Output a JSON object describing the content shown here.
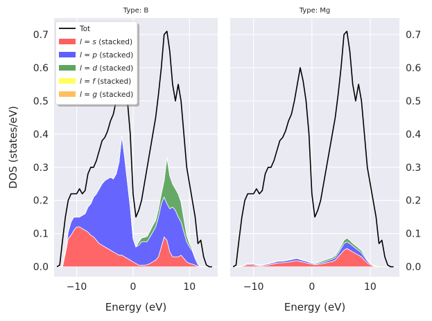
{
  "chart_data": [
    {
      "type": "area",
      "title": "Type: B",
      "xlabel": "Energy (eV)",
      "ylabel": "DOS (states/eV)",
      "xlim": [
        -14,
        15
      ],
      "ylim": [
        -0.03,
        0.75
      ],
      "xticks": [
        -10,
        0,
        10
      ],
      "yticks": [
        0.0,
        0.1,
        0.2,
        0.3,
        0.4,
        0.5,
        0.6,
        0.7
      ],
      "xtick_labels": [
        "−10",
        "0",
        "10"
      ],
      "ytick_labels": [
        "0.0",
        "0.1",
        "0.2",
        "0.3",
        "0.4",
        "0.5",
        "0.6",
        "0.7"
      ],
      "y_axis_side": "left",
      "grid": true,
      "legend_position": "upper-left",
      "x": [
        -13.5,
        -13,
        -12.5,
        -12,
        -11.5,
        -11,
        -10.5,
        -10,
        -9.5,
        -9,
        -8.5,
        -8,
        -7.5,
        -7,
        -6.5,
        -6,
        -5.5,
        -5,
        -4.5,
        -4,
        -3.5,
        -3,
        -2.5,
        -2,
        -1.5,
        -1,
        -0.5,
        0,
        0.5,
        1,
        1.5,
        2,
        2.5,
        3,
        3.5,
        4,
        4.5,
        5,
        5.5,
        6,
        6.5,
        7,
        7.5,
        8,
        8.5,
        9,
        9.5,
        10,
        10.5,
        11,
        11.5,
        12,
        12.5,
        13,
        13.5,
        14
      ],
      "series": [
        {
          "name": "Tot",
          "kind": "line",
          "color": "#000000",
          "values": [
            0,
            0.005,
            0.08,
            0.15,
            0.2,
            0.22,
            0.22,
            0.22,
            0.235,
            0.22,
            0.23,
            0.28,
            0.3,
            0.3,
            0.32,
            0.35,
            0.38,
            0.39,
            0.41,
            0.44,
            0.46,
            0.5,
            0.55,
            0.6,
            0.56,
            0.5,
            0.4,
            0.22,
            0.15,
            0.17,
            0.2,
            0.25,
            0.3,
            0.35,
            0.4,
            0.45,
            0.52,
            0.6,
            0.7,
            0.71,
            0.65,
            0.55,
            0.5,
            0.55,
            0.5,
            0.4,
            0.3,
            0.25,
            0.2,
            0.15,
            0.07,
            0.08,
            0.03,
            0.005,
            0,
            0
          ]
        },
        {
          "name": "l = s (stacked)",
          "kind": "stack",
          "color": "#ff5f5f",
          "values": [
            0,
            0,
            0,
            0.04,
            0.085,
            0.095,
            0.11,
            0.12,
            0.12,
            0.115,
            0.11,
            0.105,
            0.095,
            0.09,
            0.08,
            0.07,
            0.065,
            0.06,
            0.055,
            0.05,
            0.045,
            0.04,
            0.035,
            0.035,
            0.03,
            0.025,
            0.02,
            0.015,
            0.01,
            0.005,
            0.005,
            0.005,
            0.006,
            0.01,
            0.015,
            0.02,
            0.03,
            0.06,
            0.09,
            0.08,
            0.045,
            0.03,
            0.03,
            0.03,
            0.035,
            0.025,
            0.015,
            0.01,
            0.008,
            0.005,
            0.002,
            0,
            0,
            0,
            0,
            0
          ]
        },
        {
          "name": "l = p (stacked)",
          "kind": "stack",
          "color": "#5f5fff",
          "values": [
            0,
            0,
            0,
            0.005,
            0.02,
            0.04,
            0.04,
            0.03,
            0.03,
            0.04,
            0.05,
            0.075,
            0.095,
            0.12,
            0.14,
            0.165,
            0.185,
            0.2,
            0.21,
            0.22,
            0.22,
            0.24,
            0.28,
            0.36,
            0.3,
            0.23,
            0.16,
            0.07,
            0.05,
            0.06,
            0.07,
            0.07,
            0.07,
            0.08,
            0.09,
            0.1,
            0.12,
            0.13,
            0.12,
            0.11,
            0.13,
            0.15,
            0.14,
            0.12,
            0.1,
            0.08,
            0.06,
            0.05,
            0.04,
            0.02,
            0.005,
            0,
            0,
            0,
            0,
            0
          ]
        },
        {
          "name": "l = d (stacked)",
          "kind": "stack",
          "color": "#5fa55f",
          "values": [
            0,
            0,
            0,
            0,
            0,
            0,
            0,
            0,
            0,
            0,
            0,
            0,
            0,
            0,
            0,
            0,
            0,
            0,
            0,
            0,
            0,
            0,
            0,
            0,
            0,
            0,
            0,
            0,
            0,
            0.01,
            0.012,
            0.014,
            0.016,
            0.018,
            0.02,
            0.02,
            0.025,
            0.03,
            0.05,
            0.14,
            0.1,
            0.07,
            0.065,
            0.07,
            0.06,
            0.04,
            0.02,
            0.01,
            0.005,
            0,
            0,
            0,
            0,
            0,
            0,
            0
          ]
        },
        {
          "name": "l = f (stacked)",
          "kind": "stack",
          "color": "#ffff5f",
          "values": [
            0,
            0,
            0,
            0,
            0,
            0,
            0,
            0,
            0,
            0,
            0,
            0,
            0,
            0,
            0,
            0,
            0,
            0,
            0,
            0,
            0,
            0,
            0,
            0,
            0,
            0,
            0,
            0,
            0,
            0,
            0,
            0,
            0,
            0,
            0,
            0,
            0,
            0,
            0,
            0,
            0,
            0,
            0,
            0,
            0,
            0,
            0,
            0,
            0,
            0,
            0,
            0,
            0,
            0,
            0,
            0
          ]
        },
        {
          "name": "l = g (stacked)",
          "kind": "stack",
          "color": "#ffbf5f",
          "values": [
            0,
            0,
            0,
            0,
            0,
            0,
            0,
            0,
            0,
            0,
            0,
            0,
            0,
            0,
            0,
            0,
            0,
            0,
            0,
            0,
            0,
            0,
            0,
            0,
            0,
            0,
            0,
            0,
            0,
            0,
            0,
            0,
            0,
            0,
            0,
            0,
            0,
            0,
            0,
            0,
            0,
            0,
            0,
            0,
            0,
            0,
            0,
            0,
            0,
            0,
            0,
            0,
            0,
            0,
            0,
            0
          ]
        }
      ]
    },
    {
      "type": "area",
      "title": "Type: Mg",
      "xlabel": "Energy (eV)",
      "ylabel": "",
      "xlim": [
        -14,
        15
      ],
      "ylim": [
        -0.03,
        0.75
      ],
      "xticks": [
        -10,
        0,
        10
      ],
      "yticks": [
        0.0,
        0.1,
        0.2,
        0.3,
        0.4,
        0.5,
        0.6,
        0.7
      ],
      "xtick_labels": [
        "−10",
        "0",
        "10"
      ],
      "ytick_labels": [
        "0.0",
        "0.1",
        "0.2",
        "0.3",
        "0.4",
        "0.5",
        "0.6",
        "0.7"
      ],
      "y_axis_side": "right",
      "grid": true,
      "x": [
        -13.5,
        -13,
        -12.5,
        -12,
        -11.5,
        -11,
        -10.5,
        -10,
        -9.5,
        -9,
        -8.5,
        -8,
        -7.5,
        -7,
        -6.5,
        -6,
        -5.5,
        -5,
        -4.5,
        -4,
        -3.5,
        -3,
        -2.5,
        -2,
        -1.5,
        -1,
        -0.5,
        0,
        0.5,
        1,
        1.5,
        2,
        2.5,
        3,
        3.5,
        4,
        4.5,
        5,
        5.5,
        6,
        6.5,
        7,
        7.5,
        8,
        8.5,
        9,
        9.5,
        10,
        10.5,
        11,
        11.5,
        12,
        12.5,
        13,
        13.5,
        14
      ],
      "series": [
        {
          "name": "Tot",
          "kind": "line",
          "color": "#000000",
          "values": [
            0,
            0.005,
            0.08,
            0.15,
            0.2,
            0.22,
            0.22,
            0.22,
            0.235,
            0.22,
            0.23,
            0.28,
            0.3,
            0.3,
            0.32,
            0.35,
            0.38,
            0.39,
            0.41,
            0.44,
            0.46,
            0.5,
            0.55,
            0.6,
            0.56,
            0.5,
            0.4,
            0.22,
            0.15,
            0.17,
            0.2,
            0.25,
            0.3,
            0.35,
            0.4,
            0.45,
            0.52,
            0.6,
            0.7,
            0.71,
            0.65,
            0.55,
            0.5,
            0.55,
            0.5,
            0.4,
            0.3,
            0.25,
            0.2,
            0.15,
            0.07,
            0.08,
            0.03,
            0.005,
            0,
            0
          ]
        },
        {
          "name": "l = s (stacked)",
          "kind": "stack",
          "color": "#ff5f5f",
          "values": [
            0,
            0,
            0,
            0.002,
            0.004,
            0.006,
            0.006,
            0.005,
            0.004,
            0.003,
            0.003,
            0.004,
            0.005,
            0.007,
            0.009,
            0.011,
            0.012,
            0.012,
            0.013,
            0.014,
            0.016,
            0.018,
            0.018,
            0.016,
            0.014,
            0.012,
            0.01,
            0.008,
            0.006,
            0.007,
            0.008,
            0.01,
            0.012,
            0.014,
            0.016,
            0.02,
            0.03,
            0.04,
            0.05,
            0.055,
            0.05,
            0.045,
            0.04,
            0.035,
            0.03,
            0.02,
            0.012,
            0.006,
            0.003,
            0.001,
            0,
            0,
            0,
            0,
            0,
            0
          ]
        },
        {
          "name": "l = p (stacked)",
          "kind": "stack",
          "color": "#5f5fff",
          "values": [
            0,
            0,
            0,
            0.001,
            0.002,
            0.003,
            0.003,
            0.003,
            0.002,
            0.002,
            0.002,
            0.003,
            0.003,
            0.004,
            0.004,
            0.005,
            0.005,
            0.005,
            0.005,
            0.006,
            0.006,
            0.006,
            0.007,
            0.006,
            0.005,
            0.005,
            0.004,
            0.003,
            0.003,
            0.003,
            0.004,
            0.004,
            0.005,
            0.006,
            0.007,
            0.008,
            0.01,
            0.015,
            0.02,
            0.02,
            0.02,
            0.018,
            0.016,
            0.014,
            0.012,
            0.01,
            0.006,
            0.003,
            0.002,
            0.001,
            0,
            0,
            0,
            0,
            0,
            0
          ]
        },
        {
          "name": "l = d (stacked)",
          "kind": "stack",
          "color": "#5fa55f",
          "values": [
            0,
            0,
            0,
            0,
            0,
            0.001,
            0.001,
            0.001,
            0.001,
            0.001,
            0.001,
            0.001,
            0.001,
            0.001,
            0.001,
            0.001,
            0.001,
            0.001,
            0.001,
            0.001,
            0.001,
            0.001,
            0.001,
            0.001,
            0.001,
            0.001,
            0.001,
            0.001,
            0.002,
            0.003,
            0.004,
            0.005,
            0.005,
            0.005,
            0.005,
            0.006,
            0.007,
            0.008,
            0.01,
            0.012,
            0.01,
            0.008,
            0.008,
            0.008,
            0.007,
            0.005,
            0.003,
            0.002,
            0.001,
            0,
            0,
            0,
            0,
            0,
            0,
            0
          ]
        },
        {
          "name": "l = f (stacked)",
          "kind": "stack",
          "color": "#ffff5f",
          "values": [
            0,
            0,
            0,
            0,
            0,
            0,
            0,
            0,
            0,
            0,
            0,
            0,
            0,
            0,
            0,
            0,
            0,
            0,
            0,
            0,
            0,
            0,
            0,
            0,
            0,
            0,
            0,
            0,
            0,
            0,
            0,
            0,
            0,
            0,
            0,
            0,
            0,
            0,
            0,
            0,
            0,
            0,
            0,
            0,
            0,
            0,
            0,
            0,
            0,
            0,
            0,
            0,
            0,
            0,
            0,
            0
          ]
        },
        {
          "name": "l = g (stacked)",
          "kind": "stack",
          "color": "#ffbf5f",
          "values": [
            0,
            0,
            0,
            0,
            0,
            0,
            0,
            0,
            0,
            0,
            0,
            0,
            0,
            0,
            0,
            0,
            0,
            0,
            0,
            0,
            0,
            0,
            0,
            0,
            0,
            0,
            0,
            0,
            0,
            0,
            0,
            0,
            0,
            0,
            0,
            0,
            0,
            0,
            0,
            0,
            0,
            0,
            0,
            0,
            0,
            0,
            0,
            0,
            0,
            0,
            0,
            0,
            0,
            0,
            0,
            0
          ]
        }
      ]
    }
  ],
  "legend": {
    "entries": [
      {
        "text": "Tot",
        "color": "#000000",
        "kind": "line"
      },
      {
        "text": "l = s (stacked)",
        "color": "#ff5f5f",
        "kind": "patch"
      },
      {
        "text": "l = p (stacked)",
        "color": "#5f5fff",
        "kind": "patch"
      },
      {
        "text": "l = d (stacked)",
        "color": "#5fa55f",
        "kind": "patch"
      },
      {
        "text": "l = f (stacked)",
        "color": "#ffff5f",
        "kind": "patch"
      },
      {
        "text": "l = g (stacked)",
        "color": "#ffbf5f",
        "kind": "patch"
      }
    ]
  },
  "colors": {
    "panel_background": "#eaeaf2",
    "grid": "#ffffff",
    "text": "#262626"
  }
}
